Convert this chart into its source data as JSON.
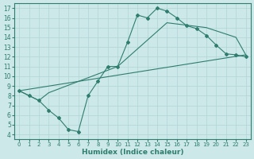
{
  "xlabel": "Humidex (Indice chaleur)",
  "xlim": [
    -0.5,
    23.5
  ],
  "ylim": [
    3.5,
    17.5
  ],
  "xticks": [
    0,
    1,
    2,
    3,
    4,
    5,
    6,
    7,
    8,
    9,
    10,
    11,
    12,
    13,
    14,
    15,
    16,
    17,
    18,
    19,
    20,
    21,
    22,
    23
  ],
  "yticks": [
    4,
    5,
    6,
    7,
    8,
    9,
    10,
    11,
    12,
    13,
    14,
    15,
    16,
    17
  ],
  "bg_color": "#cce8e8",
  "grid_color": "#b0d4d4",
  "line_color": "#2e7d6e",
  "main_x": [
    0,
    1,
    2,
    3,
    4,
    5,
    6,
    7,
    8,
    9,
    10,
    11,
    12,
    13,
    14,
    15,
    16,
    17,
    18,
    19,
    20,
    21,
    22,
    23
  ],
  "main_y": [
    8.5,
    8.0,
    7.5,
    6.5,
    5.7,
    4.5,
    4.3,
    8.0,
    9.5,
    11.0,
    11.0,
    13.5,
    16.3,
    16.0,
    17.0,
    16.7,
    16.0,
    15.2,
    14.9,
    14.2,
    13.2,
    12.3,
    12.2,
    12.0
  ],
  "line2_x": [
    0,
    1,
    2,
    3,
    10,
    15,
    19,
    22,
    23
  ],
  "line2_y": [
    8.5,
    8.0,
    7.5,
    8.3,
    11.0,
    15.5,
    15.0,
    14.0,
    12.2
  ],
  "line3_x": [
    0,
    23
  ],
  "line3_y": [
    8.5,
    12.2
  ],
  "xlabel_fontsize": 6.5,
  "tick_fontsize": 5.5
}
